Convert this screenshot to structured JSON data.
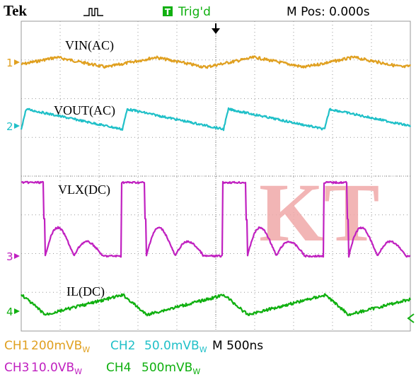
{
  "header": {
    "brand": "Tek",
    "trigger_icon": "T",
    "trigger_state": "Trig'd",
    "position": "M Pos: 0.000s"
  },
  "channels": [
    {
      "marker": "1",
      "label": "VIN(AC)"
    },
    {
      "marker": "2",
      "label": "VOUT(AC)"
    },
    {
      "marker": "3",
      "label": "VLX(DC)"
    },
    {
      "marker": "4",
      "label": "IL(DC)"
    }
  ],
  "watermark": "KT",
  "status": [
    {
      "channel": "CH1",
      "scale": "200mV",
      "bw": "B",
      "bw_sub": "W"
    },
    {
      "channel": "CH2",
      "scale": "50.0mV",
      "bw": "B",
      "bw_sub": "W"
    },
    {
      "channel": "CH3",
      "scale": "10.0V",
      "bw": "B",
      "bw_sub": "W"
    },
    {
      "channel": "CH4",
      "scale": "500mV",
      "bw": "B",
      "bw_sub": "W"
    }
  ],
  "timebase": "M 500ns"
}
